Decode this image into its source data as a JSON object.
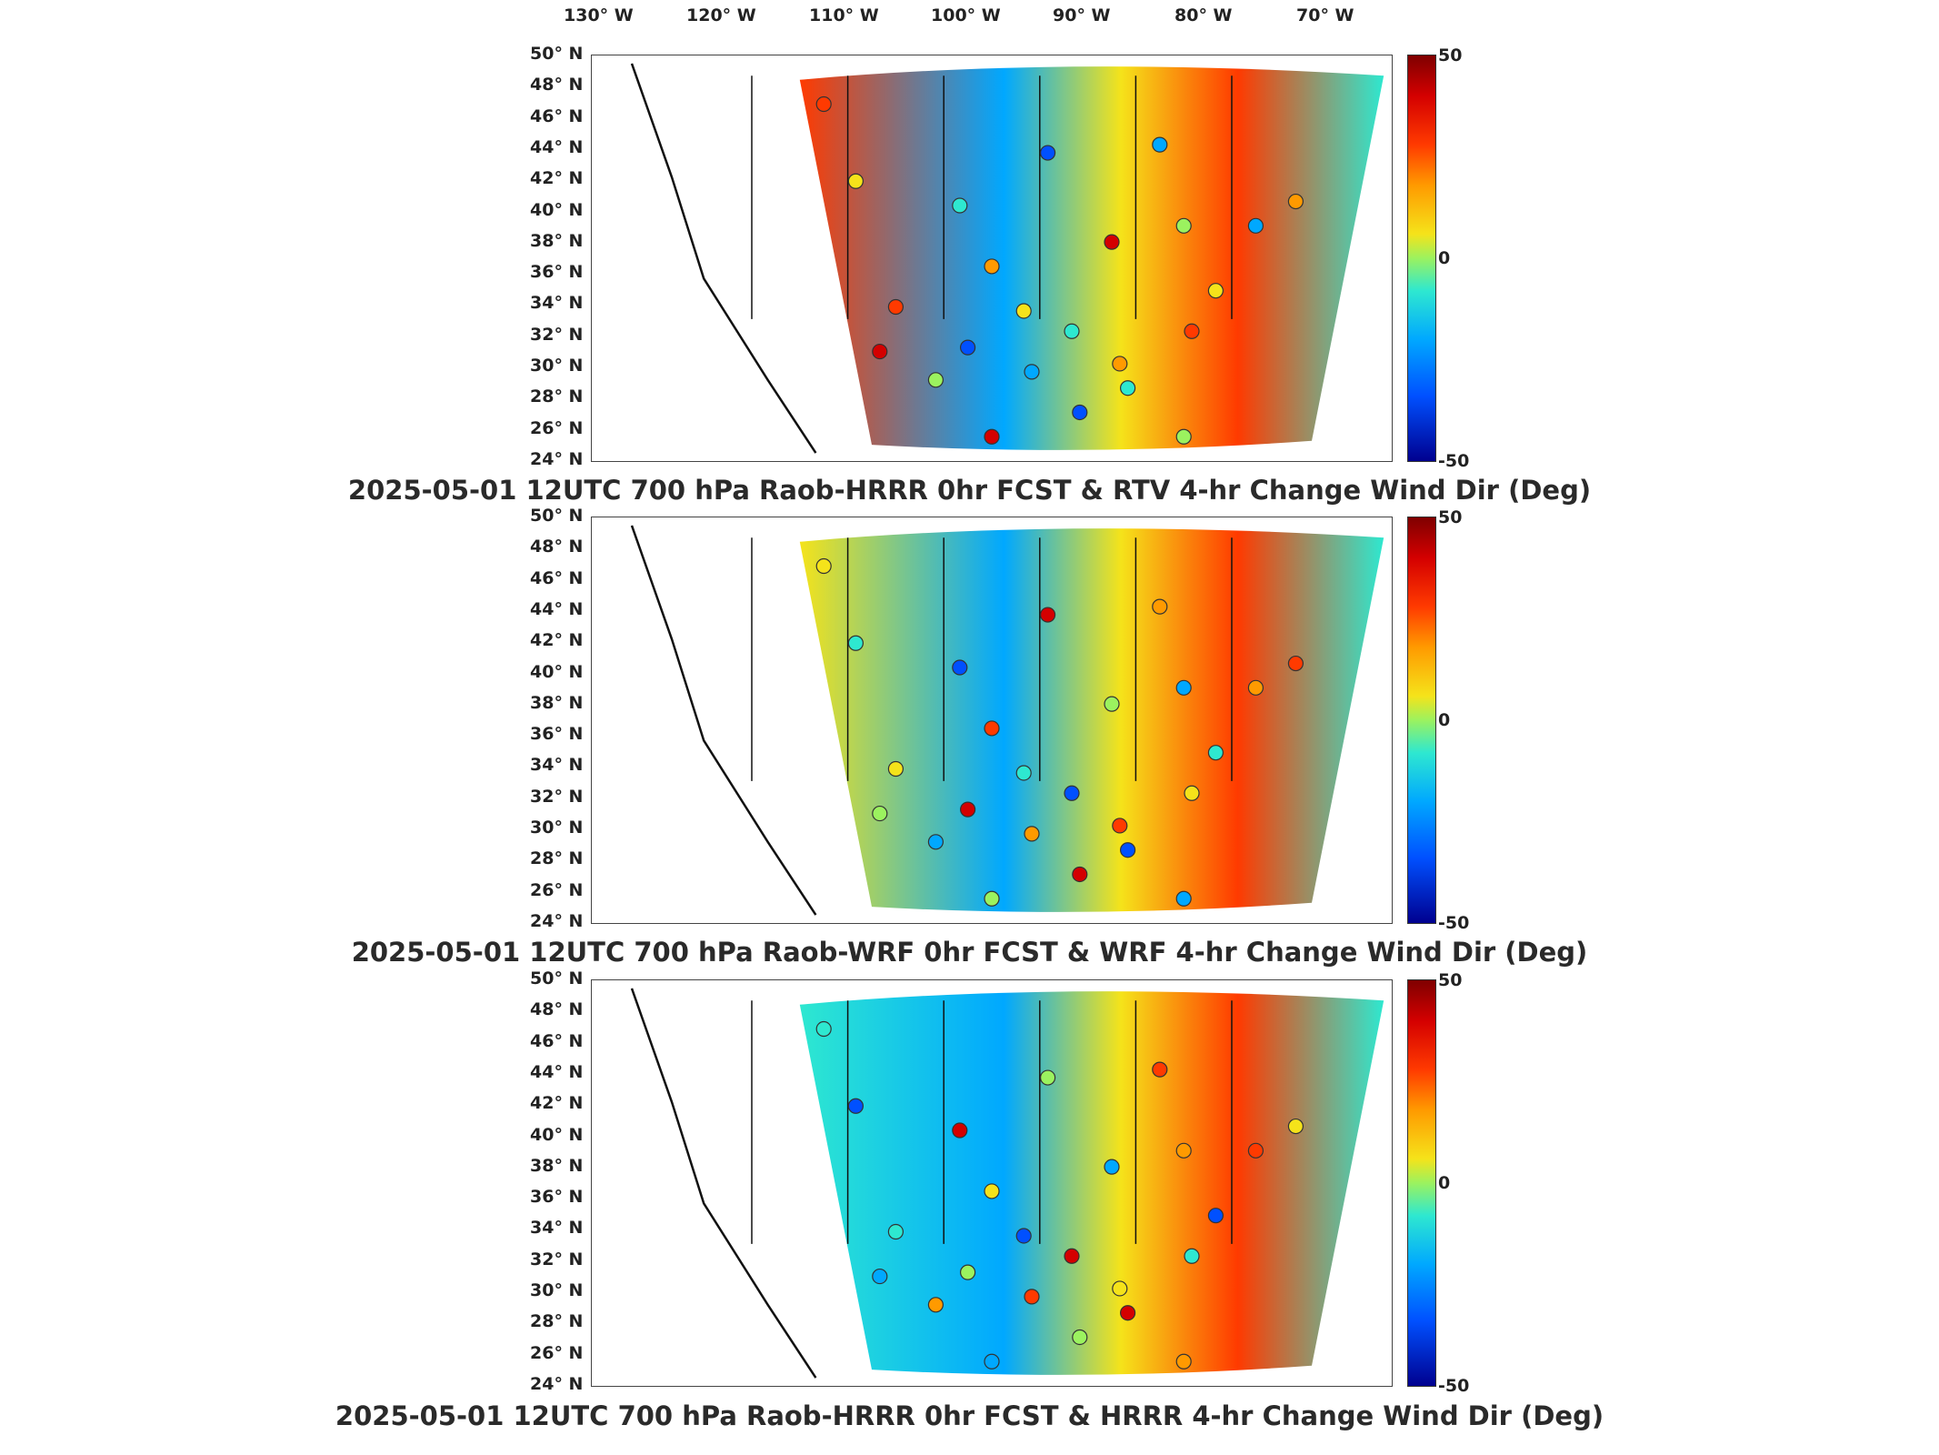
{
  "lon_ticks": [
    "130° W",
    "120° W",
    "110° W",
    "100° W",
    "90° W",
    "80° W",
    "70° W"
  ],
  "lat_ticks": [
    "50° N",
    "48° N",
    "46° N",
    "44° N",
    "42° N",
    "40° N",
    "38° N",
    "36° N",
    "34° N",
    "32° N",
    "30° N",
    "28° N",
    "26° N",
    "24° N"
  ],
  "colorbar": {
    "max": "50",
    "mid": "0",
    "min": "-50"
  },
  "panels": [
    {
      "title": "2025-05-01 12UTC 700 hPa Raob-HRRR 0hr FCST & RTV 4-hr Change Wind Dir (Deg)"
    },
    {
      "title": "2025-05-01 12UTC 700 hPa Raob-WRF 0hr FCST & WRF 4-hr Change Wind Dir (Deg)"
    },
    {
      "title": "2025-05-01 12UTC 700 hPa Raob-HRRR 0hr FCST & HRRR 4-hr Change Wind Dir (Deg)"
    }
  ],
  "colors": {
    "high": "#7f0000",
    "zero": "#9bf25f",
    "low": "#00008f"
  }
}
